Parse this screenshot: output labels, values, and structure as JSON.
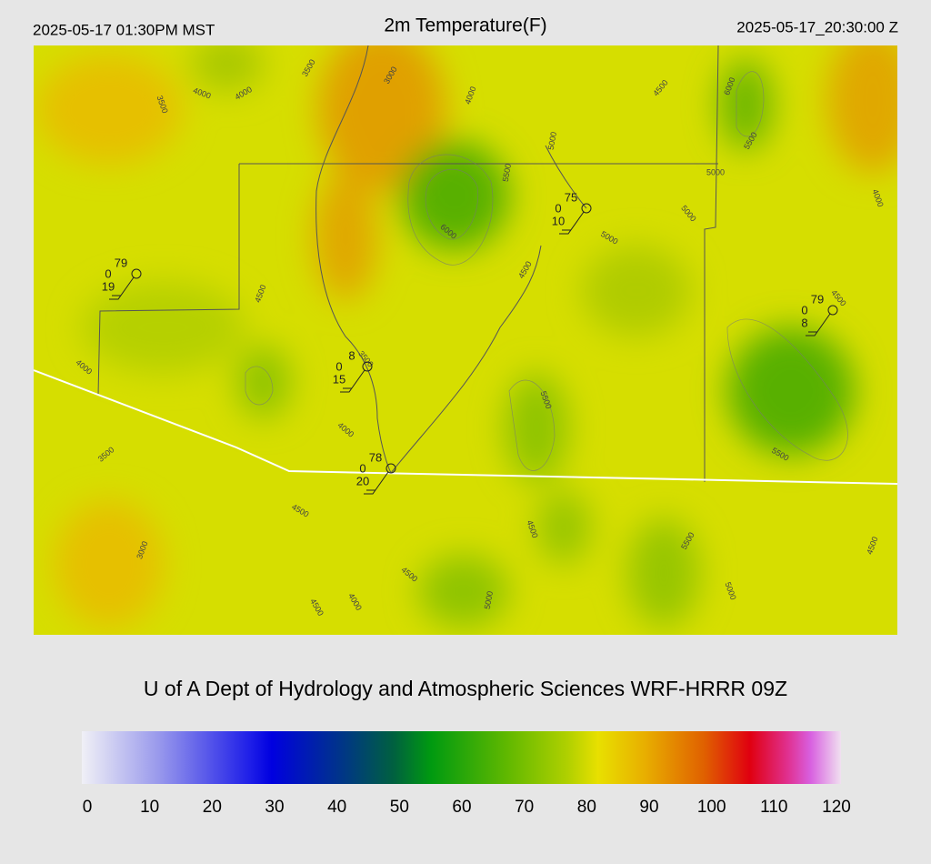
{
  "header": {
    "left": "2025-05-17 01:30PM MST",
    "title": "2m Temperature(F)",
    "right": "2025-05-17_20:30:00 Z"
  },
  "map": {
    "contour_labels": [
      "3500",
      "3500",
      "4000",
      "4000",
      "3000",
      "4000",
      "5000",
      "5500",
      "6000",
      "4500",
      "6000",
      "5500",
      "5000",
      "5000",
      "5000",
      "4000",
      "4500",
      "4500",
      "4500",
      "4000",
      "3500",
      "5500",
      "4000",
      "3500",
      "5500",
      "4500",
      "4500",
      "5500",
      "3000",
      "4500",
      "4500",
      "4500",
      "4000",
      "5000",
      "5000"
    ],
    "stations": [
      {
        "temp": 79,
        "cloud": 0,
        "dew": 19
      },
      {
        "temp": 75,
        "cloud": 0,
        "dew": 10
      },
      {
        "temp": 79,
        "cloud": 0,
        "dew": 8
      },
      {
        "temp": 8,
        "cloud": 0,
        "dew": 15
      },
      {
        "temp": 78,
        "cloud": 0,
        "dew": 20
      }
    ]
  },
  "footer": {
    "credit": "U of A Dept of Hydrology and Atmospheric Sciences WRF-HRRR 09Z"
  },
  "colorbar": {
    "ticks": [
      0,
      10,
      20,
      30,
      40,
      50,
      60,
      70,
      80,
      90,
      100,
      110,
      120
    ]
  }
}
